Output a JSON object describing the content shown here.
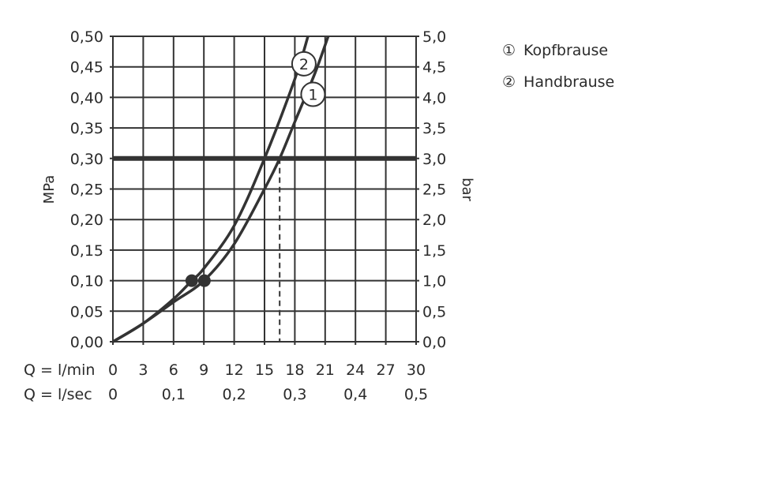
{
  "chart_data": {
    "type": "line",
    "title": "",
    "ylabel": "MPa",
    "y2label": "bar",
    "xlim": [
      0,
      30
    ],
    "ylim": [
      0,
      0.5
    ],
    "grid": true,
    "legend_placement": "top-right",
    "y_ticks": [
      "0,00",
      "0,05",
      "0,10",
      "0,15",
      "0,20",
      "0,25",
      "0,30",
      "0,35",
      "0,40",
      "0,45",
      "0,50"
    ],
    "y2_ticks": [
      "0,0",
      "0,5",
      "1,0",
      "1,5",
      "2,0",
      "2,5",
      "3,0",
      "3,5",
      "4,0",
      "4,5",
      "5,0"
    ],
    "x_row1": {
      "label": "Q = l/min",
      "ticks": [
        "0",
        "3",
        "6",
        "9",
        "12",
        "15",
        "18",
        "21",
        "24",
        "27",
        "30"
      ]
    },
    "x_row2": {
      "label": "Q = l/sec",
      "ticks": [
        {
          "v": 0,
          "t": "0"
        },
        {
          "v": 6,
          "t": "0,1"
        },
        {
          "v": 12,
          "t": "0,2"
        },
        {
          "v": 18,
          "t": "0,3"
        },
        {
          "v": 24,
          "t": "0,4"
        },
        {
          "v": 30,
          "t": "0,5"
        }
      ]
    },
    "reference_line": {
      "y": 0.3
    },
    "series": [
      {
        "name": "Kopfbrause",
        "marker": "①",
        "label": "1",
        "x": [
          0,
          3,
          6,
          9,
          12,
          15,
          16.5,
          18,
          20,
          21.3
        ],
        "y": [
          0,
          0.03,
          0.065,
          0.1,
          0.16,
          0.25,
          0.3,
          0.36,
          0.44,
          0.5
        ],
        "dot": [
          9.05,
          0.1
        ],
        "label_pos": [
          19.8,
          0.405
        ],
        "drop_x": 16.5
      },
      {
        "name": "Handbrause",
        "marker": "②",
        "label": "2",
        "x": [
          0,
          3,
          6,
          7.8,
          9,
          12,
          15,
          18,
          19.3
        ],
        "y": [
          0,
          0.03,
          0.07,
          0.1,
          0.12,
          0.19,
          0.3,
          0.43,
          0.5
        ],
        "dot": [
          7.8,
          0.1
        ],
        "label_pos": [
          18.9,
          0.455
        ],
        "drop_x": 15
      }
    ],
    "color": "#333333"
  }
}
